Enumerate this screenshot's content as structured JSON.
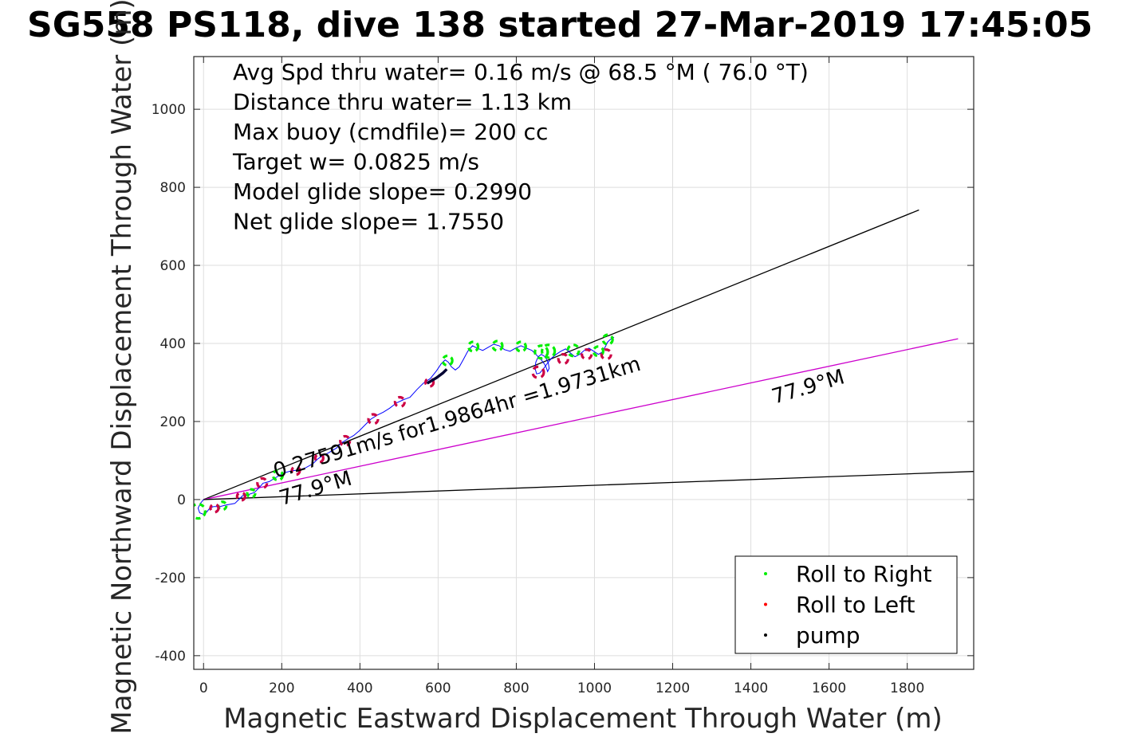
{
  "chart_data": {
    "type": "line",
    "title": "SG558 PS118, dive 138 started 27-Mar-2019 17:45:05",
    "xlabel": "Magnetic Eastward Displacement Through Water (m)",
    "ylabel": "Magnetic Northward Displacement Through Water (m)",
    "xlim": [
      -25,
      1970
    ],
    "ylim": [
      -435,
      1135
    ],
    "xticks": [
      0,
      200,
      400,
      600,
      800,
      1000,
      1200,
      1400,
      1600,
      1800
    ],
    "yticks": [
      -400,
      -200,
      0,
      200,
      400,
      600,
      800,
      1000
    ],
    "xtick_labels": [
      "0",
      "200",
      "400",
      "600",
      "800",
      "1000",
      "1200",
      "1400",
      "1600",
      "1800"
    ],
    "ytick_labels": [
      "-400",
      "-200",
      "0",
      "200",
      "400",
      "600",
      "800",
      "1000"
    ],
    "grid": true,
    "info_lines": [
      "Avg Spd thru water=  0.16 m/s @  68.5 °M ( 76.0 °T)",
      "Distance thru water=  1.13 km",
      "Max buoy (cmdfile)= 200 cc",
      "Target w= 0.0825 m/s",
      "Model glide slope= 0.2990",
      "Net glide slope= 1.7550"
    ],
    "annotations": [
      {
        "text": "0.27591m/s for1.9864hr =1.9731km",
        "x": 185,
        "y": 55,
        "angle_deg": 16.5
      },
      {
        "text": "77.9°M",
        "x": 200,
        "y": -15,
        "angle_deg": 16.5
      },
      {
        "text": "77.9°M",
        "x": 1460,
        "y": 245,
        "angle_deg": 16.5
      }
    ],
    "lines": [
      {
        "name": "avg-course-line",
        "color": "#000000",
        "x": [
          0,
          1830
        ],
        "y": [
          0,
          742
        ]
      },
      {
        "name": "current-line",
        "color": "#cc00cc",
        "x": [
          0,
          1930
        ],
        "y": [
          0,
          412
        ]
      },
      {
        "name": "heading-line",
        "color": "#000000",
        "x": [
          0,
          1970
        ],
        "y": [
          0,
          72
        ]
      }
    ],
    "track": {
      "color": "#0000ff",
      "x": [
        0,
        -8,
        -14,
        -10,
        0,
        8,
        16,
        26,
        42,
        58,
        80,
        92,
        100,
        112,
        130,
        142,
        152,
        168,
        184,
        198,
        212,
        226,
        246,
        262,
        280,
        292,
        304,
        320,
        340,
        354,
        370,
        384,
        398,
        412,
        428,
        444,
        460,
        476,
        494,
        512,
        528,
        546,
        562,
        580,
        596,
        608,
        618,
        626,
        634,
        644,
        654,
        664,
        676,
        688,
        700,
        714,
        728,
        742,
        756,
        770,
        784,
        798,
        812,
        826,
        840,
        852,
        862,
        870,
        876,
        880,
        884,
        882,
        874,
        864,
        856,
        850,
        848,
        852,
        860,
        870,
        880,
        890,
        902,
        914,
        926,
        938,
        950,
        962,
        974,
        986,
        998,
        1010,
        1020,
        1028,
        1034,
        1040,
        1046,
        1050
      ],
      "y": [
        0,
        -10,
        -22,
        -34,
        -38,
        -32,
        -22,
        -18,
        -18,
        -14,
        -10,
        2,
        10,
        12,
        18,
        30,
        42,
        46,
        56,
        64,
        70,
        74,
        76,
        82,
        92,
        104,
        112,
        120,
        132,
        146,
        156,
        164,
        176,
        190,
        206,
        216,
        224,
        234,
        248,
        256,
        262,
        282,
        298,
        310,
        330,
        348,
        358,
        352,
        340,
        332,
        340,
        358,
        380,
        394,
        388,
        382,
        390,
        398,
        394,
        384,
        380,
        388,
        394,
        388,
        382,
        370,
        360,
        350,
        340,
        328,
        336,
        350,
        366,
        372,
        366,
        352,
        336,
        322,
        324,
        336,
        350,
        362,
        372,
        380,
        386,
        376,
        366,
        372,
        382,
        388,
        380,
        372,
        378,
        392,
        404,
        410,
        414,
        416
      ]
    },
    "roll_right_segments": [
      {
        "cx": -14,
        "cy": -30,
        "r": 9
      },
      {
        "cx": 48,
        "cy": -16,
        "r": 5
      },
      {
        "cx": 122,
        "cy": 16,
        "r": 5
      },
      {
        "cx": 190,
        "cy": 62,
        "r": 6
      },
      {
        "cx": 624,
        "cy": 356,
        "r": 6
      },
      {
        "cx": 690,
        "cy": 392,
        "r": 6
      },
      {
        "cx": 752,
        "cy": 394,
        "r": 6
      },
      {
        "cx": 812,
        "cy": 392,
        "r": 6
      },
      {
        "cx": 864,
        "cy": 378,
        "r": 8
      },
      {
        "cx": 882,
        "cy": 380,
        "r": 8
      },
      {
        "cx": 946,
        "cy": 382,
        "r": 7
      },
      {
        "cx": 1010,
        "cy": 380,
        "r": 6
      },
      {
        "cx": 1034,
        "cy": 410,
        "r": 6
      }
    ],
    "roll_left_segments": [
      {
        "cx": 28,
        "cy": -22,
        "r": 5
      },
      {
        "cx": 96,
        "cy": 8,
        "r": 5
      },
      {
        "cx": 150,
        "cy": 42,
        "r": 6
      },
      {
        "cx": 236,
        "cy": 74,
        "r": 5
      },
      {
        "cx": 296,
        "cy": 106,
        "r": 5
      },
      {
        "cx": 362,
        "cy": 150,
        "r": 6
      },
      {
        "cx": 434,
        "cy": 206,
        "r": 6
      },
      {
        "cx": 502,
        "cy": 250,
        "r": 6
      },
      {
        "cx": 578,
        "cy": 300,
        "r": 5
      },
      {
        "cx": 856,
        "cy": 326,
        "r": 7
      },
      {
        "cx": 920,
        "cy": 360,
        "r": 6
      },
      {
        "cx": 980,
        "cy": 372,
        "r": 6
      },
      {
        "cx": 1030,
        "cy": 372,
        "r": 6
      }
    ],
    "pump_segment": {
      "x": [
        572,
        596,
        612,
        622
      ],
      "y": [
        298,
        312,
        324,
        334
      ]
    },
    "legend": {
      "placement": "bottom-right",
      "entries": [
        {
          "label": "Roll to Right",
          "color": "#00ee00"
        },
        {
          "label": "Roll to Left",
          "color": "#ff0000"
        },
        {
          "label": "pump",
          "color": "#000000"
        }
      ]
    }
  }
}
